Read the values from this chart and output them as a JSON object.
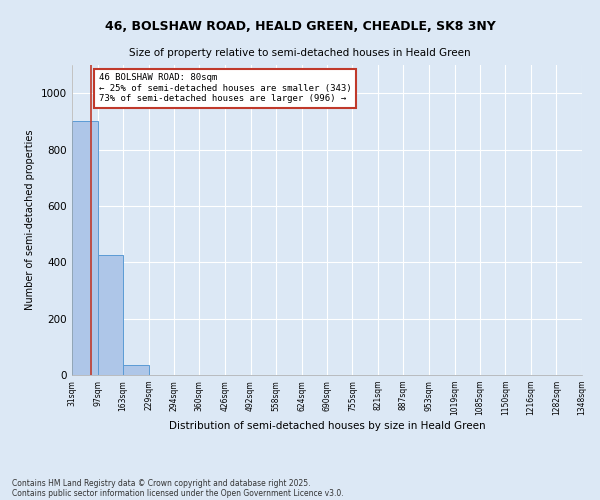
{
  "title1": "46, BOLSHAW ROAD, HEALD GREEN, CHEADLE, SK8 3NY",
  "title2": "Size of property relative to semi-detached houses in Heald Green",
  "xlabel": "Distribution of semi-detached houses by size in Heald Green",
  "ylabel": "Number of semi-detached properties",
  "bin_edges": [
    31,
    97,
    163,
    229,
    294,
    360,
    426,
    492,
    558,
    624,
    690,
    755,
    821,
    887,
    953,
    1019,
    1085,
    1150,
    1216,
    1282,
    1348
  ],
  "bar_heights": [
    900,
    425,
    35,
    0,
    0,
    0,
    0,
    0,
    0,
    0,
    0,
    0,
    0,
    0,
    0,
    0,
    0,
    0,
    0,
    0
  ],
  "bar_color": "#aec6e8",
  "bar_edge_color": "#5b9bd5",
  "property_size": 80,
  "property_label": "46 BOLSHAW ROAD: 80sqm",
  "pct_smaller": 25,
  "n_smaller": 343,
  "pct_larger": 73,
  "n_larger": 996,
  "vline_color": "#c0392b",
  "annotation_box_edge_color": "#c0392b",
  "ylim": [
    0,
    1100
  ],
  "yticks": [
    0,
    200,
    400,
    600,
    800,
    1000
  ],
  "background_color": "#dce8f5",
  "grid_color": "#ffffff",
  "footer1": "Contains HM Land Registry data © Crown copyright and database right 2025.",
  "footer2": "Contains public sector information licensed under the Open Government Licence v3.0."
}
